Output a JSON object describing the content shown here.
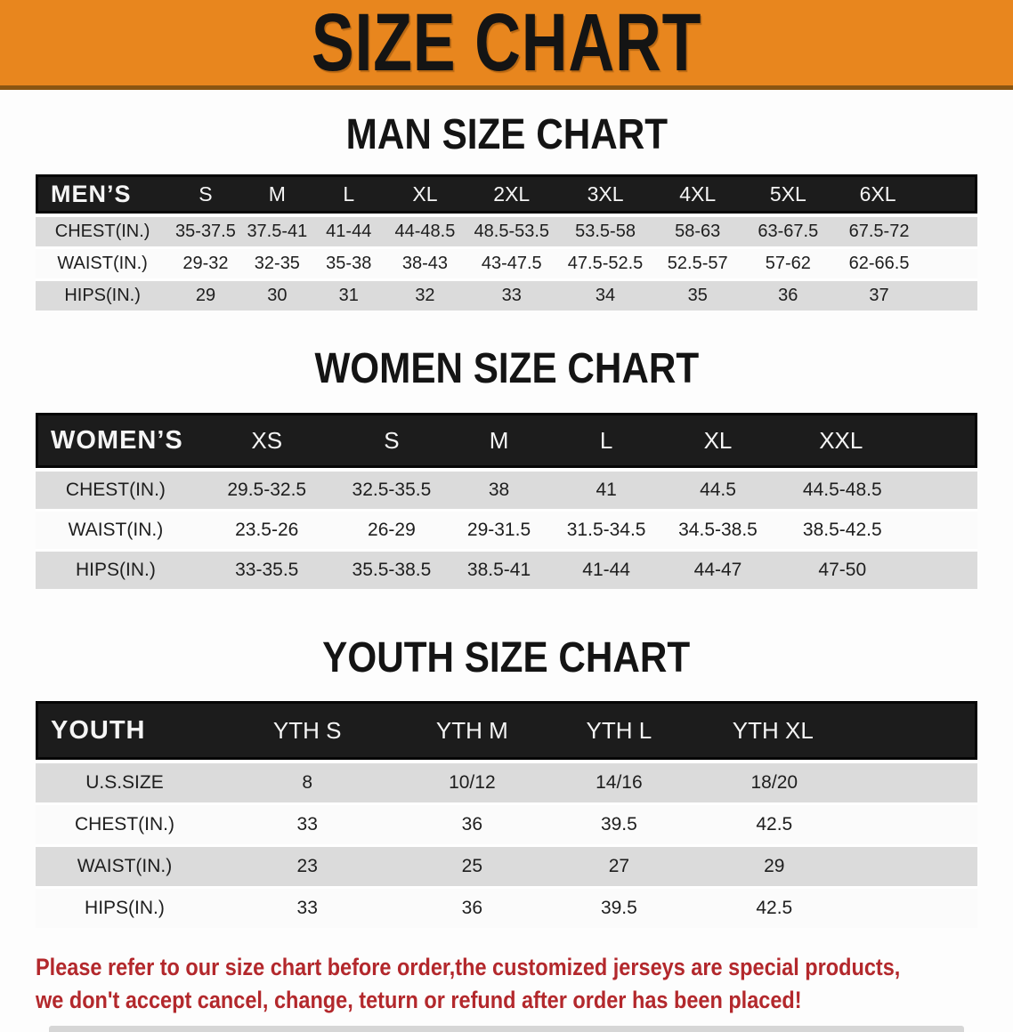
{
  "banner": {
    "title": "SIZE CHART",
    "bg_color": "#E8861E",
    "text_color": "#141414"
  },
  "sections": [
    {
      "id": "men",
      "title": "MAN SIZE CHART",
      "header_label": "MEN’S",
      "columns": [
        "S",
        "M",
        "L",
        "XL",
        "2XL",
        "3XL",
        "4XL",
        "5XL",
        "6XL"
      ],
      "rows": [
        {
          "label": "CHEST(IN.)",
          "values": [
            "35-37.5",
            "37.5-41",
            "41-44",
            "44-48.5",
            "48.5-53.5",
            "53.5-58",
            "58-63",
            "63-67.5",
            "67.5-72"
          ]
        },
        {
          "label": "WAIST(IN.)",
          "values": [
            "29-32",
            "32-35",
            "35-38",
            "38-43",
            "43-47.5",
            "47.5-52.5",
            "52.5-57",
            "57-62",
            "62-66.5"
          ]
        },
        {
          "label": "HIPS(IN.)",
          "values": [
            "29",
            "30",
            "31",
            "32",
            "33",
            "34",
            "35",
            "36",
            "37"
          ]
        }
      ]
    },
    {
      "id": "women",
      "title": "WOMEN SIZE CHART",
      "header_label": "WOMEN’S",
      "columns": [
        "XS",
        "S",
        "M",
        "L",
        "XL",
        "XXL"
      ],
      "rows": [
        {
          "label": "CHEST(IN.)",
          "values": [
            "29.5-32.5",
            "32.5-35.5",
            "38",
            "41",
            "44.5",
            "44.5-48.5"
          ]
        },
        {
          "label": "WAIST(IN.)",
          "values": [
            "23.5-26",
            "26-29",
            "29-31.5",
            "31.5-34.5",
            "34.5-38.5",
            "38.5-42.5"
          ]
        },
        {
          "label": "HIPS(IN.)",
          "values": [
            "33-35.5",
            "35.5-38.5",
            "38.5-41",
            "41-44",
            "44-47",
            "47-50"
          ]
        }
      ]
    },
    {
      "id": "youth",
      "title": "YOUTH SIZE CHART",
      "header_label": "YOUTH",
      "columns": [
        "YTH S",
        "YTH M",
        "YTH L",
        "YTH XL"
      ],
      "rows": [
        {
          "label": "U.S.SIZE",
          "values": [
            "8",
            "10/12",
            "14/16",
            "18/20"
          ]
        },
        {
          "label": "CHEST(IN.)",
          "values": [
            "33",
            "36",
            "39.5",
            "42.5"
          ]
        },
        {
          "label": "WAIST(IN.)",
          "values": [
            "23",
            "25",
            "27",
            "29"
          ]
        },
        {
          "label": "HIPS(IN.)",
          "values": [
            "33",
            "36",
            "39.5",
            "42.5"
          ]
        }
      ]
    }
  ],
  "footer": {
    "line1": "Please refer to our size chart before order,the customized jerseys are special products,",
    "line2": "we don't accept cancel, change, teturn or refund after order has been placed!",
    "text_color": "#B3282C"
  },
  "colors": {
    "header_bar": "#1C1C1C",
    "row_gray": "#DBDBDB",
    "row_white": "#FBFBFB"
  }
}
